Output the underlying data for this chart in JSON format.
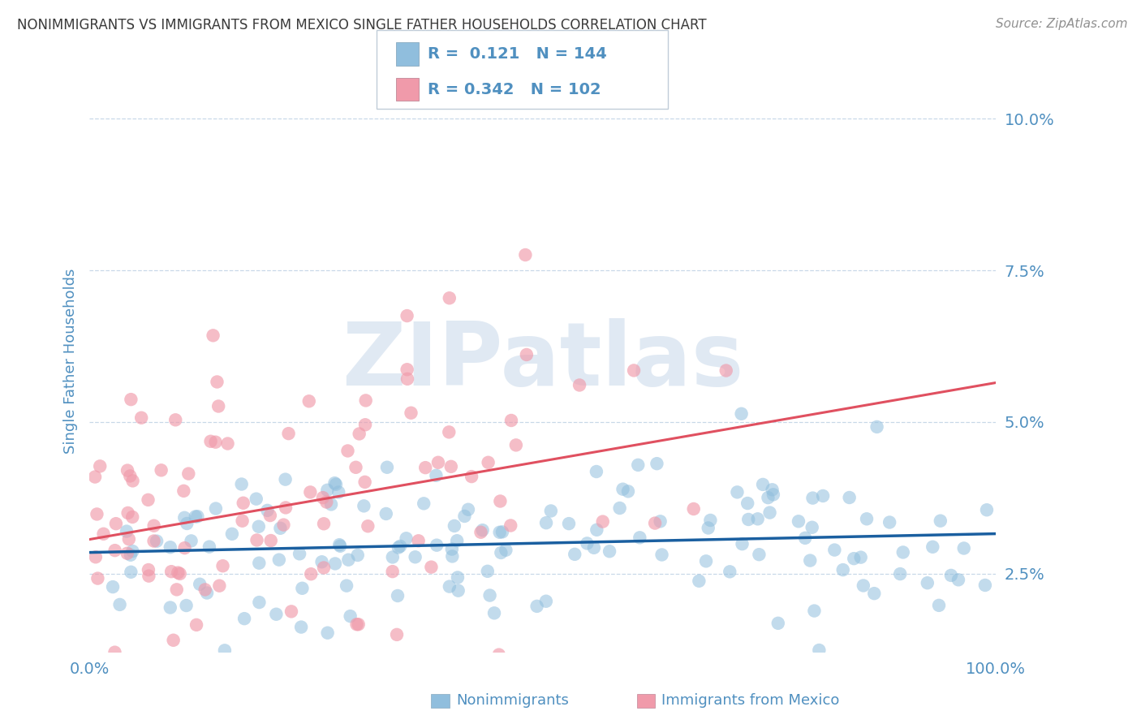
{
  "title": "NONIMMIGRANTS VS IMMIGRANTS FROM MEXICO SINGLE FATHER HOUSEHOLDS CORRELATION CHART",
  "source": "Source: ZipAtlas.com",
  "ylabel": "Single Father Households",
  "legend_blue_r": "0.121",
  "legend_blue_n": "144",
  "legend_pink_r": "0.342",
  "legend_pink_n": "102",
  "legend_label_blue": "Nonimmigrants",
  "legend_label_pink": "Immigrants from Mexico",
  "ytick_vals": [
    0.025,
    0.05,
    0.075,
    0.1
  ],
  "ytick_labels": [
    "2.5%",
    "5.0%",
    "7.5%",
    "10.0%"
  ],
  "xlim": [
    0.0,
    1.0
  ],
  "ylim": [
    0.012,
    0.108
  ],
  "watermark": "ZIPatlas",
  "watermark_color": "#c8d8ea",
  "blue_dot_color": "#90bedd",
  "pink_dot_color": "#f09aaa",
  "blue_line_color": "#1a5fa0",
  "pink_line_color": "#e05060",
  "title_color": "#3a3a3a",
  "source_color": "#909090",
  "axis_color": "#5090c0",
  "grid_color": "#c8d8e8",
  "background_color": "#ffffff",
  "blue_r": 0.121,
  "blue_n": 144,
  "pink_r": 0.342,
  "pink_n": 102,
  "seed_blue": 15,
  "seed_pink": 23
}
